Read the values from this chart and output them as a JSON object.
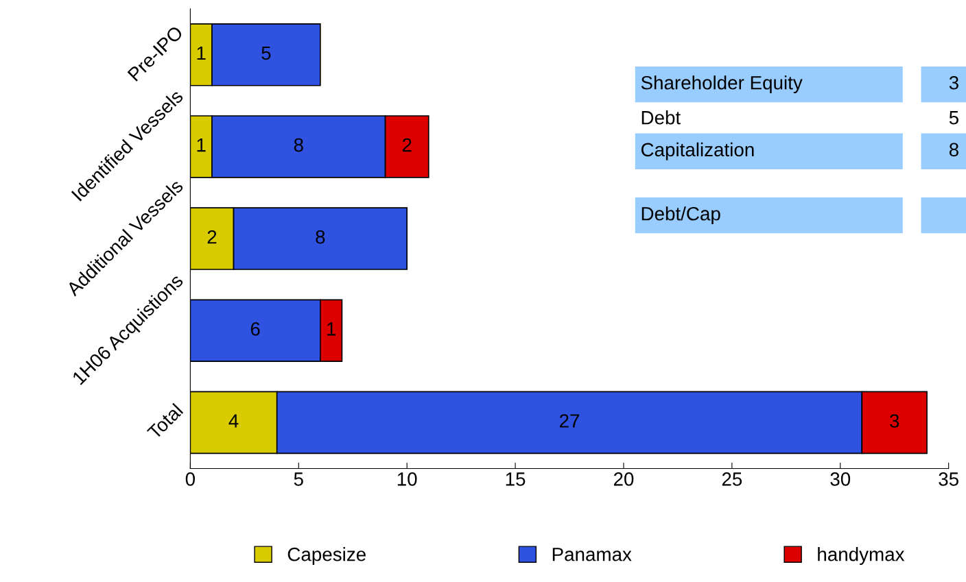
{
  "chart_data": {
    "type": "bar",
    "orientation": "horizontal",
    "stacked": true,
    "categories": [
      "Pre-IPO",
      "Identified Vessels",
      "Additional Vessels",
      "1H06 Acquistions",
      "Total"
    ],
    "series": [
      {
        "name": "Capesize",
        "color": "#d8cc00",
        "values": [
          1,
          1,
          2,
          null,
          4
        ]
      },
      {
        "name": "Panamax",
        "color": "#2f52e0",
        "values": [
          5,
          8,
          8,
          6,
          27
        ]
      },
      {
        "name": "handymax",
        "color": "#dd0000",
        "values": [
          null,
          2,
          null,
          1,
          3
        ]
      }
    ],
    "xlim": [
      0,
      35
    ],
    "xticks": [
      0,
      5,
      10,
      15,
      20,
      25,
      30,
      35
    ],
    "data_labels": true,
    "legend": "bottom",
    "grid": false,
    "annotations": [
      "Shareholder Equity",
      "3",
      "Debt",
      "5",
      "Capitalization",
      "8",
      "Debt/Cap"
    ]
  }
}
